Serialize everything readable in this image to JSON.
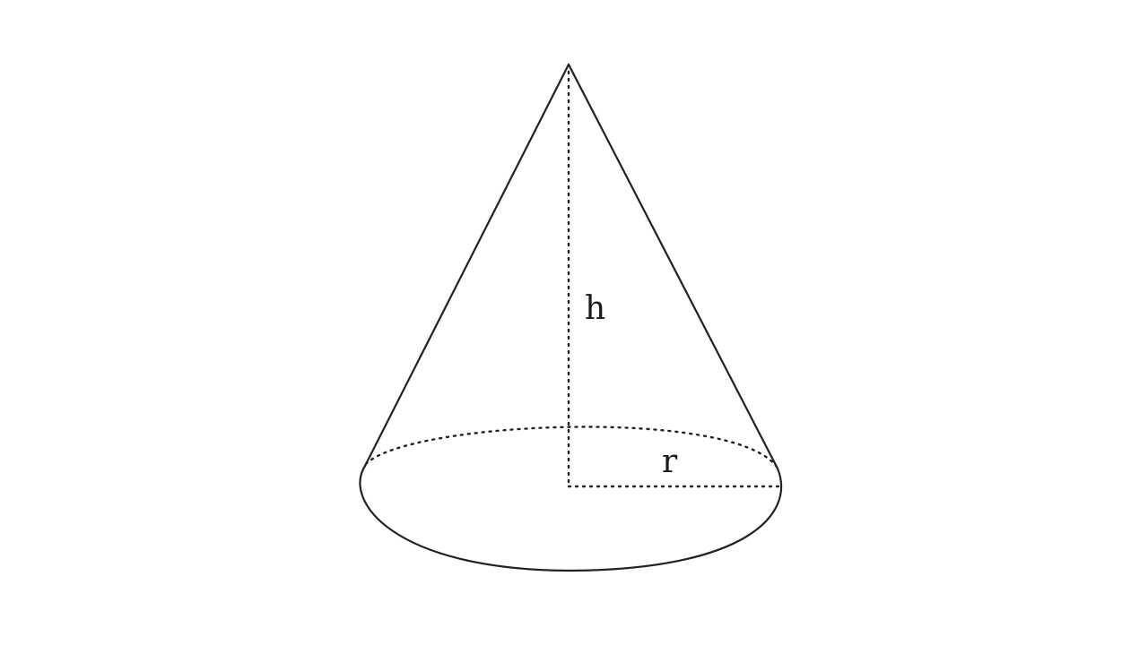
{
  "figure": {
    "shape": "cone",
    "line_color": "#222222",
    "background": "#ffffff",
    "labels": {
      "height": "h",
      "radius": "r"
    }
  }
}
